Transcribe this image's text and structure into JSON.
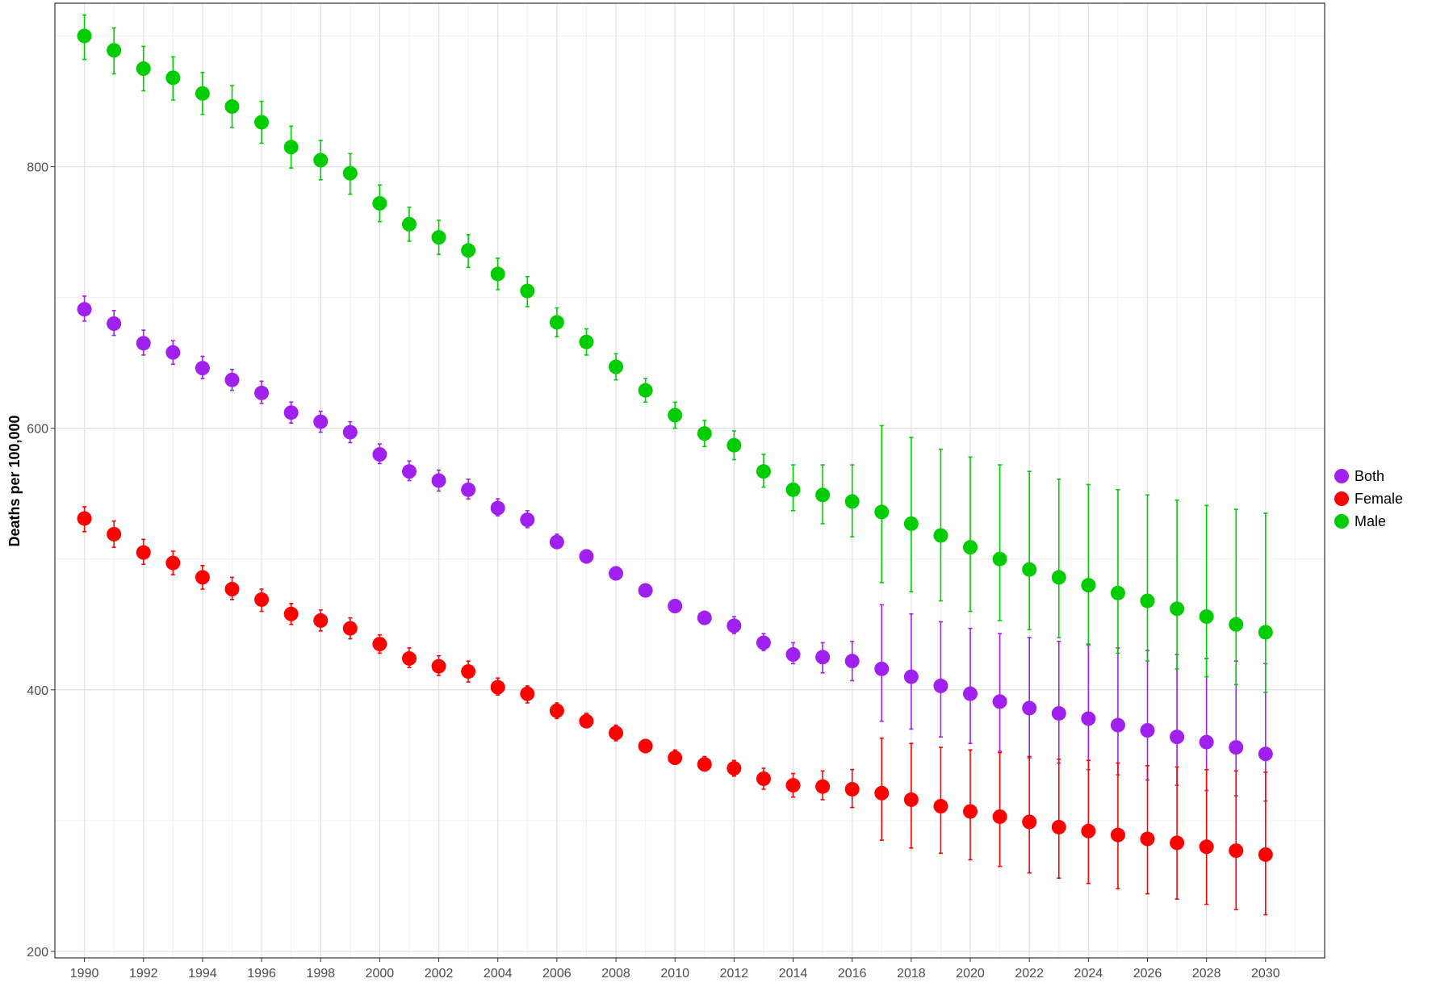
{
  "chart_data": {
    "type": "scatter",
    "title": "",
    "xlabel": "",
    "ylabel": "Deaths per 100,000",
    "xlim": [
      1989,
      2032
    ],
    "ylim": [
      195,
      925
    ],
    "x_ticks": [
      1990,
      1992,
      1994,
      1996,
      1998,
      2000,
      2002,
      2004,
      2006,
      2008,
      2010,
      2012,
      2014,
      2016,
      2018,
      2020,
      2022,
      2024,
      2026,
      2028,
      2030
    ],
    "y_ticks": [
      200,
      400,
      600,
      800
    ],
    "grid": true,
    "legend_position": "right",
    "x": [
      1990,
      1991,
      1992,
      1993,
      1994,
      1995,
      1996,
      1997,
      1998,
      1999,
      2000,
      2001,
      2002,
      2003,
      2004,
      2005,
      2006,
      2007,
      2008,
      2009,
      2010,
      2011,
      2012,
      2013,
      2014,
      2015,
      2016,
      2017,
      2018,
      2019,
      2020,
      2021,
      2022,
      2023,
      2024,
      2025,
      2026,
      2027,
      2028,
      2029,
      2030
    ],
    "series": [
      {
        "name": "Both",
        "color": "#a020f0",
        "values": [
          691,
          680,
          665,
          658,
          646,
          637,
          627,
          612,
          605,
          597,
          580,
          567,
          560,
          553,
          539,
          530,
          513,
          502,
          489,
          476,
          464,
          455,
          449,
          436,
          427,
          425,
          422,
          416,
          410,
          403,
          397,
          391,
          386,
          382,
          378,
          373,
          369,
          364,
          360,
          356,
          351
        ],
        "lower": [
          682,
          671,
          656,
          649,
          638,
          629,
          619,
          604,
          597,
          589,
          573,
          560,
          552,
          546,
          533,
          524,
          508,
          497,
          485,
          472,
          460,
          451,
          443,
          430,
          420,
          413,
          407,
          376,
          370,
          364,
          359,
          353,
          348,
          344,
          339,
          335,
          331,
          327,
          323,
          319,
          315
        ],
        "upper": [
          701,
          690,
          675,
          667,
          655,
          645,
          636,
          620,
          613,
          605,
          588,
          575,
          568,
          561,
          546,
          537,
          519,
          507,
          494,
          480,
          469,
          460,
          456,
          443,
          436,
          436,
          437,
          465,
          458,
          452,
          447,
          443,
          440,
          437,
          435,
          432,
          430,
          427,
          424,
          422,
          420
        ]
      },
      {
        "name": "Female",
        "color": "#ff0000",
        "values": [
          531,
          519,
          505,
          497,
          486,
          477,
          469,
          458,
          453,
          447,
          435,
          424,
          418,
          414,
          402,
          397,
          384,
          376,
          367,
          357,
          348,
          343,
          340,
          332,
          327,
          326,
          324,
          321,
          316,
          311,
          307,
          303,
          299,
          295,
          292,
          289,
          286,
          283,
          280,
          277,
          274
        ],
        "lower": [
          521,
          509,
          496,
          488,
          477,
          469,
          460,
          450,
          445,
          439,
          428,
          417,
          411,
          406,
          396,
          390,
          378,
          371,
          361,
          352,
          343,
          338,
          334,
          324,
          318,
          316,
          310,
          285,
          279,
          275,
          270,
          265,
          260,
          256,
          252,
          248,
          244,
          240,
          236,
          232,
          228
        ],
        "upper": [
          540,
          529,
          515,
          506,
          495,
          486,
          477,
          466,
          461,
          455,
          442,
          432,
          426,
          422,
          409,
          403,
          390,
          382,
          373,
          362,
          354,
          349,
          346,
          340,
          336,
          338,
          339,
          363,
          359,
          356,
          354,
          352,
          349,
          347,
          346,
          344,
          342,
          341,
          339,
          338,
          337
        ]
      },
      {
        "name": "Male",
        "color": "#00cd00",
        "values": [
          900,
          889,
          875,
          868,
          856,
          846,
          834,
          815,
          805,
          795,
          772,
          756,
          746,
          736,
          718,
          705,
          681,
          666,
          647,
          629,
          610,
          596,
          587,
          567,
          553,
          549,
          544,
          536,
          527,
          518,
          509,
          500,
          492,
          486,
          480,
          474,
          468,
          462,
          456,
          450,
          444
        ],
        "lower": [
          882,
          871,
          858,
          851,
          840,
          830,
          818,
          799,
          790,
          779,
          758,
          743,
          733,
          723,
          706,
          693,
          670,
          656,
          637,
          620,
          600,
          586,
          576,
          555,
          537,
          527,
          517,
          482,
          475,
          468,
          460,
          453,
          446,
          440,
          434,
          428,
          422,
          416,
          410,
          404,
          398
        ],
        "upper": [
          916,
          906,
          892,
          884,
          872,
          862,
          850,
          831,
          820,
          810,
          786,
          769,
          759,
          748,
          730,
          716,
          692,
          676,
          657,
          638,
          620,
          606,
          598,
          580,
          572,
          572,
          572,
          602,
          593,
          584,
          578,
          572,
          567,
          561,
          557,
          553,
          549,
          545,
          541,
          538,
          535
        ]
      }
    ]
  }
}
